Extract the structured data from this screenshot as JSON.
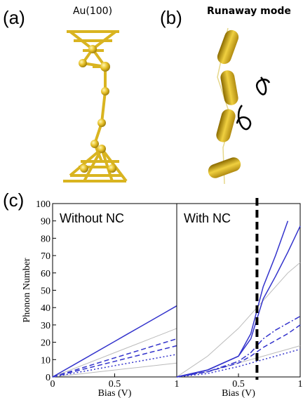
{
  "panels": {
    "a": {
      "label": "(a)",
      "title": "Au(100)"
    },
    "b": {
      "label": "(b)",
      "title": "Runaway mode"
    },
    "c": {
      "label": "(c)"
    }
  },
  "chart_data": [
    {
      "type": "line",
      "title": "Without NC",
      "ylabel": "Phonon Number",
      "xlabel": "Bias (V)",
      "x": [
        0,
        0.25,
        0.5,
        0.6,
        0.7,
        0.8,
        0.9,
        1
      ],
      "xlim": [
        0,
        1
      ],
      "xticks": [
        0,
        0.5,
        1
      ],
      "ylim": [
        0,
        100
      ],
      "yticks": [
        0,
        10,
        20,
        30,
        40,
        50,
        60,
        70,
        80,
        90,
        100
      ],
      "series": [
        {
          "color": "#bbbbbb",
          "dash": "solid",
          "values": [
            0,
            7,
            14,
            16.8,
            19.6,
            22.4,
            25.2,
            28
          ]
        },
        {
          "color": "#bbbbbb",
          "dash": "solid",
          "values": [
            0,
            2,
            4,
            4.8,
            5.6,
            6.4,
            7.2,
            8
          ]
        },
        {
          "color": "#3333cc",
          "dash": "solid",
          "values": [
            0,
            10.25,
            20.5,
            24.6,
            28.7,
            32.8,
            36.9,
            41
          ]
        },
        {
          "color": "#3333cc",
          "dash": "dashed",
          "values": [
            0,
            5.5,
            11,
            13.2,
            15.4,
            17.6,
            19.8,
            22
          ]
        },
        {
          "color": "#3333cc",
          "dash": "dashed",
          "values": [
            0,
            4.5,
            9,
            10.8,
            12.6,
            14.4,
            16.2,
            18
          ]
        },
        {
          "color": "#3333cc",
          "dash": "dotted",
          "values": [
            0,
            3.25,
            6.5,
            7.8,
            9.1,
            10.4,
            11.7,
            13
          ]
        }
      ]
    },
    {
      "type": "line",
      "title": "With NC",
      "xlabel": "Bias (V)",
      "x": [
        0,
        0.25,
        0.5,
        0.6,
        0.7,
        0.8,
        0.9,
        1
      ],
      "xlim": [
        0,
        1
      ],
      "xticks": [
        0.5,
        1
      ],
      "ylim": [
        0,
        100
      ],
      "vline": 0.65,
      "series": [
        {
          "color": "#bbbbbb",
          "dash": "solid",
          "values": [
            0,
            3,
            8,
            10,
            12,
            14,
            16,
            18
          ]
        },
        {
          "color": "#bbbbbb",
          "dash": "solid",
          "values": [
            0,
            12,
            28,
            36,
            44,
            52,
            60,
            66
          ]
        },
        {
          "color": "#3333cc",
          "dash": "solid",
          "values": [
            0,
            4,
            12,
            25,
            52,
            70,
            90,
            null
          ]
        },
        {
          "color": "#3333cc",
          "dash": "solid",
          "values": [
            0,
            4,
            12,
            22,
            45,
            58,
            72,
            87
          ]
        },
        {
          "color": "#3333cc",
          "dash": "dashdot",
          "values": [
            0,
            3,
            9,
            14,
            22,
            27,
            31,
            35
          ]
        },
        {
          "color": "#3333cc",
          "dash": "dashed",
          "values": [
            0,
            3,
            8,
            12,
            17,
            21,
            25,
            30
          ]
        },
        {
          "color": "#3333cc",
          "dash": "dotted",
          "values": [
            0,
            2,
            6,
            8,
            10,
            12,
            14,
            16
          ]
        }
      ]
    }
  ]
}
